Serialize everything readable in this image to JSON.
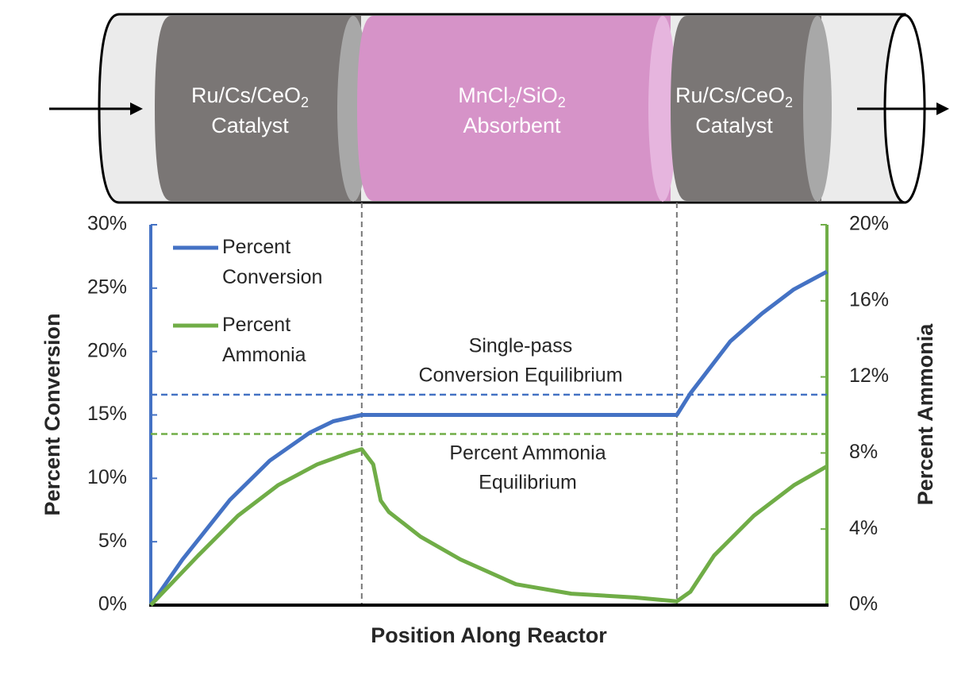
{
  "diagram": {
    "sections": [
      {
        "line1": [
          {
            "text": "Ru/Cs/CeO"
          },
          {
            "text": "2",
            "sub": true
          }
        ],
        "line2": "Catalyst"
      },
      {
        "line1": [
          {
            "text": "MnCl"
          },
          {
            "text": "2",
            "sub": true
          },
          {
            "text": "/SiO"
          },
          {
            "text": "2",
            "sub": true
          }
        ],
        "line2": "Absorbent"
      },
      {
        "line1": [
          {
            "text": "Ru/Cs/CeO"
          },
          {
            "text": "2",
            "sub": true
          }
        ],
        "line2": "Catalyst"
      }
    ]
  },
  "chart_data": {
    "type": "line",
    "xlabel": "Position Along Reactor",
    "ylabel": "Percent Conversion",
    "y2label": "Percent Ammonia",
    "xlim": [
      0,
      100
    ],
    "ylim": [
      0,
      30
    ],
    "yticks": [
      {
        "value": 0,
        "label": "0%"
      },
      {
        "value": 5,
        "label": "5%"
      },
      {
        "value": 10,
        "label": "10%"
      },
      {
        "value": 15,
        "label": "15%"
      },
      {
        "value": 20,
        "label": "20%"
      },
      {
        "value": 25,
        "label": "25%"
      },
      {
        "value": 30,
        "label": "30%"
      }
    ],
    "y2lim": [
      0,
      20
    ],
    "y2ticks": [
      {
        "value": 0,
        "label": "0%"
      },
      {
        "value": 4,
        "label": "4%"
      },
      {
        "value": 8,
        "label": "8%"
      },
      {
        "value": 12,
        "label": "12%"
      },
      {
        "value": 16,
        "label": "16%"
      },
      {
        "value": 20,
        "label": "20%"
      }
    ],
    "series": [
      {
        "name": "Percent Conversion",
        "color": "#4472c4",
        "axis": "y",
        "x": [
          0,
          4.7,
          11.7,
          17.6,
          23.5,
          27,
          31.2,
          77.8,
          79.8,
          85.7,
          90.4,
          95.1,
          100
        ],
        "values": [
          0,
          3.6,
          8.3,
          11.4,
          13.6,
          14.5,
          15,
          15,
          16.7,
          20.8,
          23,
          24.9,
          26.3
        ]
      },
      {
        "name": "Percent Ammonia",
        "color": "#70ad47",
        "axis": "y2",
        "x": [
          0,
          7,
          12.9,
          18.8,
          24.6,
          29.3,
          31.2,
          32.9,
          34,
          35.2,
          39.9,
          45.8,
          54,
          62.2,
          71.6,
          77.8,
          79.8,
          83.3,
          89.2,
          95.1,
          100
        ],
        "values": [
          0,
          2.6,
          4.7,
          6.3,
          7.4,
          8.0,
          8.2,
          7.4,
          5.5,
          4.9,
          3.6,
          2.4,
          1.1,
          0.6,
          0.4,
          0.2,
          0.7,
          2.6,
          4.7,
          6.3,
          7.3
        ]
      }
    ],
    "reference_lines": [
      {
        "value": 16.6,
        "axis": "y",
        "color": "#4472c4",
        "label": [
          "Single-pass",
          "Conversion Equilibrium"
        ]
      },
      {
        "value": 9.0,
        "axis": "y2",
        "color": "#70ad47",
        "label": [
          "Percent Ammonia",
          "Equilibrium"
        ]
      }
    ],
    "section_boundaries": [
      31.2,
      77.8
    ],
    "legend": "upper left"
  }
}
